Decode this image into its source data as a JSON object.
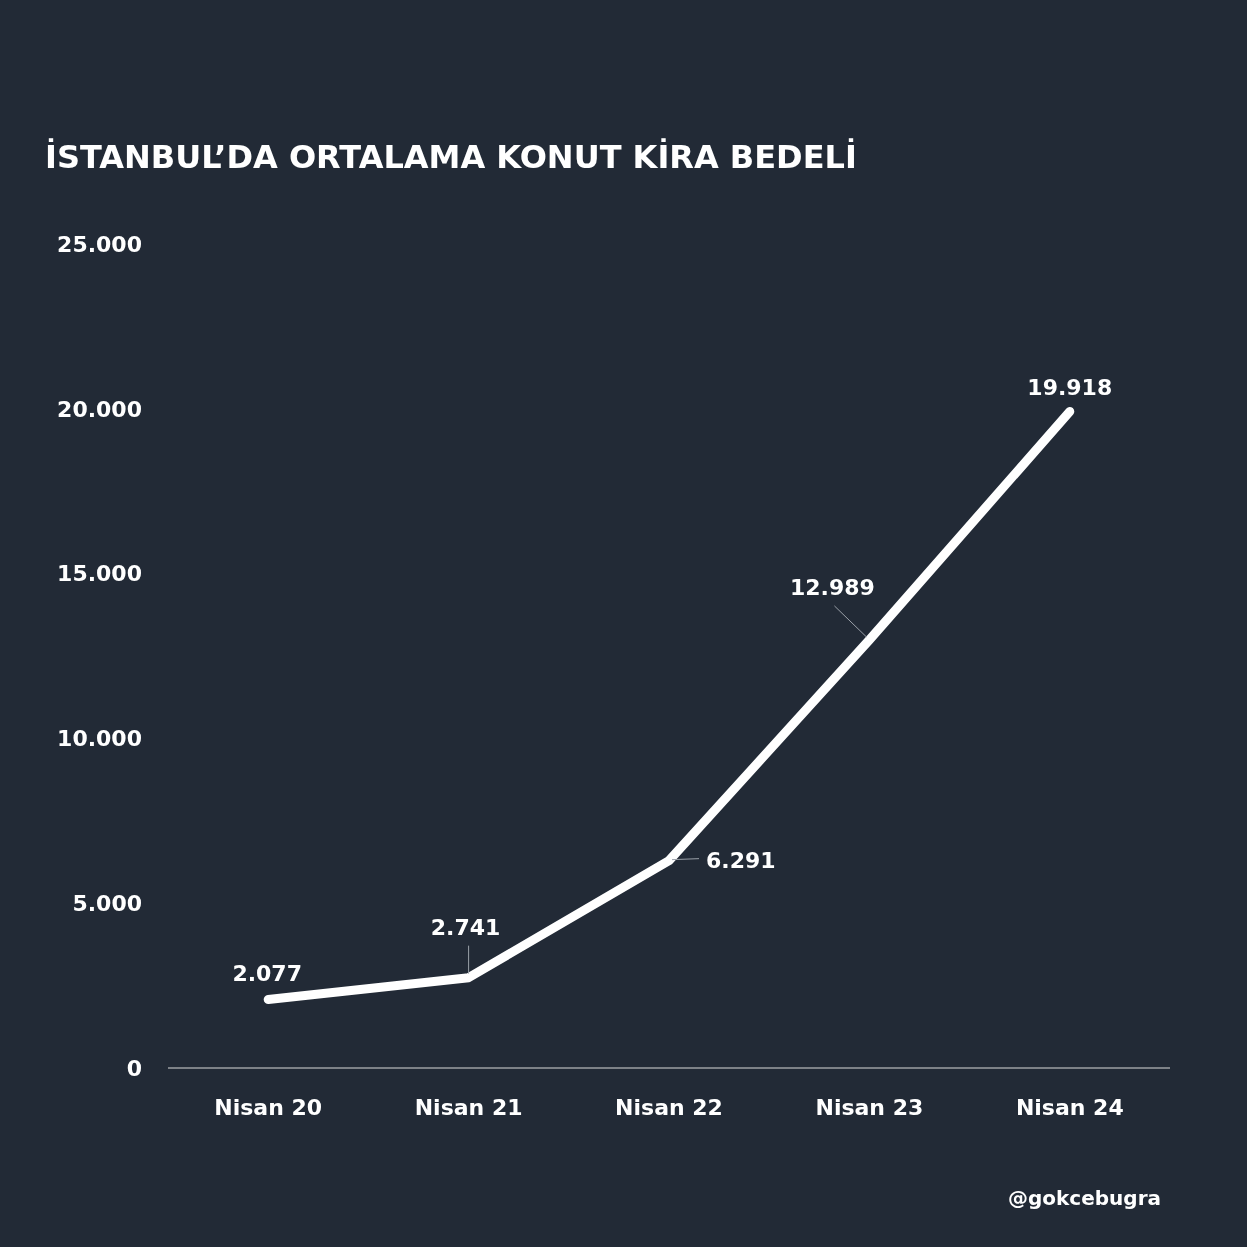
{
  "chart_data": {
    "type": "line",
    "title": "İSTANBUL’DA ORTALAMA KONUT KİRA BEDELİ",
    "categories": [
      "Nisan 20",
      "Nisan 21",
      "Nisan 22",
      "Nisan 23",
      "Nisan 24"
    ],
    "series": [
      {
        "color": "#ffffff",
        "values": [
          2077,
          2741,
          6291,
          12989,
          19918
        ],
        "value_labels": [
          "2.077",
          "2.741",
          "6.291",
          "12.989",
          "19.918"
        ]
      }
    ],
    "ylim": [
      0,
      25000
    ],
    "yticks": [
      0,
      {
        "value": 5000,
        "label": "5.000"
      },
      {
        "value": 10000,
        "label": "10.000"
      },
      {
        "value": 15000,
        "label": "15.000"
      },
      {
        "value": 20000,
        "label": "20.000"
      },
      {
        "value": 25000,
        "label": "25.000"
      }
    ],
    "annotations": [
      "@gokcebugra"
    ]
  }
}
